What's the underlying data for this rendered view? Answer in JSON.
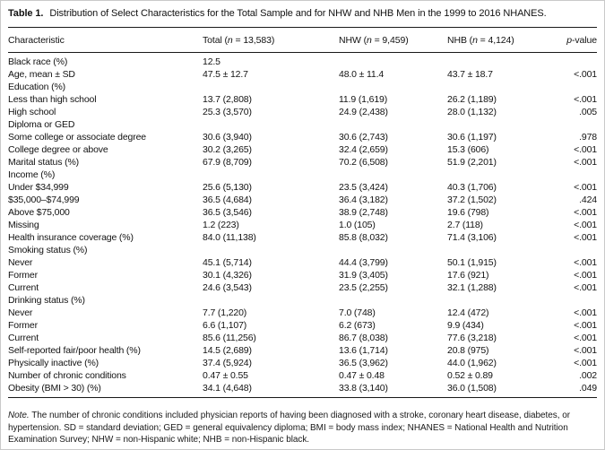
{
  "caption": {
    "label": "Table 1.",
    "title": "Distribution of Select Characteristics for the Total Sample and for NHW and NHB Men in the 1999 to 2016 NHANES."
  },
  "columns": [
    {
      "label": "Characteristic"
    },
    {
      "prefix": "Total (",
      "italic": "n",
      "suffix": " = 13,583)"
    },
    {
      "prefix": "NHW (",
      "italic": "n",
      "suffix": " = 9,459)"
    },
    {
      "prefix": "NHB (",
      "italic": "n",
      "suffix": " = 4,124)"
    },
    {
      "italic": "p",
      "suffix": "-value"
    }
  ],
  "rows": [
    {
      "label": "Black race (%)",
      "total": "12.5",
      "nhw": "",
      "nhb": "",
      "p": ""
    },
    {
      "label": "Age, mean ± SD",
      "total": "47.5 ± 12.7",
      "nhw": "48.0 ± 11.4",
      "nhb": "43.7 ± 18.7",
      "p": "<.001"
    },
    {
      "label": "Education (%)",
      "total": "",
      "nhw": "",
      "nhb": "",
      "p": ""
    },
    {
      "label": "Less than high school",
      "total": "13.7 (2,808)",
      "nhw": "11.9 (1,619)",
      "nhb": "26.2 (1,189)",
      "p": "<.001"
    },
    {
      "label": "High school",
      "total": "25.3 (3,570)",
      "nhw": "24.9 (2,438)",
      "nhb": "28.0 (1,132)",
      "p": ".005"
    },
    {
      "label": "Diploma or GED",
      "total": "",
      "nhw": "",
      "nhb": "",
      "p": ""
    },
    {
      "label": "Some college or associate degree",
      "total": "30.6 (3,940)",
      "nhw": "30.6 (2,743)",
      "nhb": "30.6 (1,197)",
      "p": ".978"
    },
    {
      "label": "College degree or above",
      "total": "30.2 (3,265)",
      "nhw": "32.4 (2,659)",
      "nhb": "15.3 (606)",
      "p": "<.001"
    },
    {
      "label": "Marital status (%)",
      "total": "67.9 (8,709)",
      "nhw": "70.2 (6,508)",
      "nhb": "51.9 (2,201)",
      "p": "<.001"
    },
    {
      "label": "Income (%)",
      "total": "",
      "nhw": "",
      "nhb": "",
      "p": ""
    },
    {
      "label": "Under $34,999",
      "total": "25.6 (5,130)",
      "nhw": "23.5 (3,424)",
      "nhb": "40.3 (1,706)",
      "p": "<.001"
    },
    {
      "label": "$35,000–$74,999",
      "total": "36.5 (4,684)",
      "nhw": "36.4 (3,182)",
      "nhb": "37.2 (1,502)",
      "p": ".424"
    },
    {
      "label": "Above $75,000",
      "total": "36.5 (3,546)",
      "nhw": "38.9 (2,748)",
      "nhb": "19.6 (798)",
      "p": "<.001"
    },
    {
      "label": "Missing",
      "total": "1.2 (223)",
      "nhw": "1.0 (105)",
      "nhb": "2.7 (118)",
      "p": "<.001"
    },
    {
      "label": "Health insurance coverage (%)",
      "total": "84.0 (11,138)",
      "nhw": "85.8 (8,032)",
      "nhb": "71.4 (3,106)",
      "p": "<.001"
    },
    {
      "label": "Smoking status (%)",
      "total": "",
      "nhw": "",
      "nhb": "",
      "p": ""
    },
    {
      "label": "Never",
      "total": "45.1 (5,714)",
      "nhw": "44.4 (3,799)",
      "nhb": "50.1 (1,915)",
      "p": "<.001"
    },
    {
      "label": "Former",
      "total": "30.1 (4,326)",
      "nhw": "31.9 (3,405)",
      "nhb": "17.6 (921)",
      "p": "<.001"
    },
    {
      "label": "Current",
      "total": "24.6 (3,543)",
      "nhw": "23.5 (2,255)",
      "nhb": "32.1 (1,288)",
      "p": "<.001"
    },
    {
      "label": "Drinking status (%)",
      "total": "",
      "nhw": "",
      "nhb": "",
      "p": ""
    },
    {
      "label": "Never",
      "total": "7.7 (1,220)",
      "nhw": "7.0 (748)",
      "nhb": "12.4 (472)",
      "p": "<.001"
    },
    {
      "label": "Former",
      "total": "6.6 (1,107)",
      "nhw": "6.2 (673)",
      "nhb": "9.9 (434)",
      "p": "<.001"
    },
    {
      "label": "Current",
      "total": "85.6 (11,256)",
      "nhw": "86.7 (8,038)",
      "nhb": "77.6 (3,218)",
      "p": "<.001"
    },
    {
      "label": "Self-reported fair/poor health (%)",
      "total": "14.5 (2,689)",
      "nhw": "13.6 (1,714)",
      "nhb": "20.8 (975)",
      "p": "<.001"
    },
    {
      "label": "Physically inactive (%)",
      "total": "37.4 (5,924)",
      "nhw": "36.5 (3,962)",
      "nhb": "44.0 (1,962)",
      "p": "<.001"
    },
    {
      "label": "Number of chronic conditions",
      "total": "0.47 ± 0.55",
      "nhw": "0.47 ± 0.48",
      "nhb": "0.52 ± 0.89",
      "p": ".002"
    },
    {
      "label": "Obesity (BMI > 30) (%)",
      "total": "34.1 (4,648)",
      "nhw": "33.8 (3,140)",
      "nhb": "36.0 (1,508)",
      "p": ".049"
    }
  ],
  "note": {
    "prefix": "Note.",
    "text": " The number of chronic conditions included physician reports of having been diagnosed with a stroke, coronary heart disease, diabetes, or hypertension. SD = standard deviation; GED = general equivalency diploma; BMI = body mass index; NHANES = National Health and Nutrition Examination Survey; NHW = non-Hispanic white; NHB = non-Hispanic black."
  },
  "colors": {
    "text": "#121212",
    "rule": "#1a1a1a",
    "page_border": "#c9c9c9",
    "background": "#ffffff"
  }
}
